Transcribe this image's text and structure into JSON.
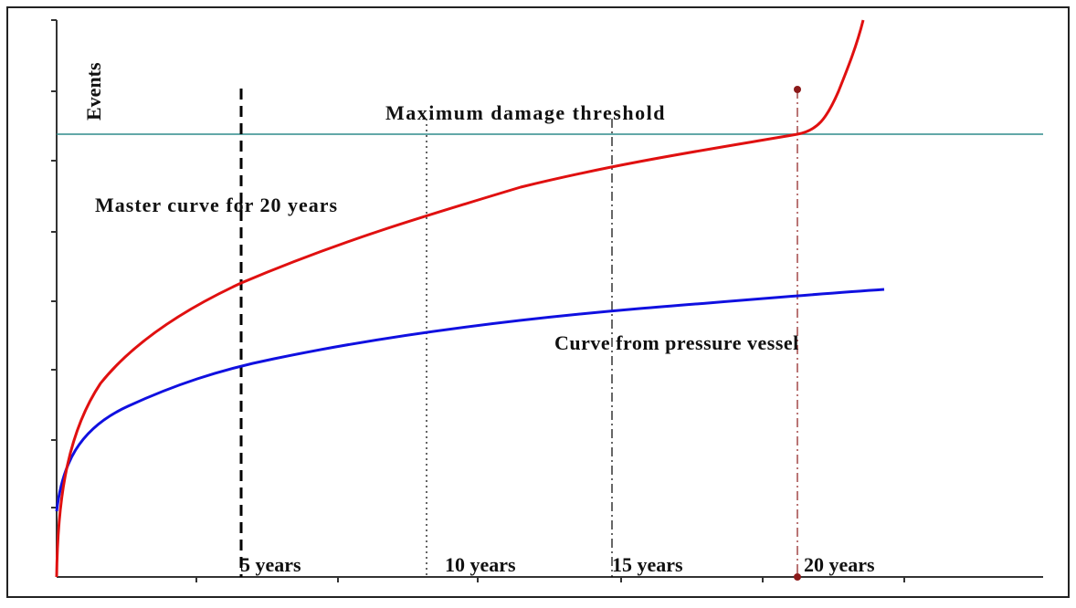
{
  "axis_label": "Events",
  "threshold": {
    "label": "Maximum damage threshold"
  },
  "curves": [
    {
      "label": "Master curve for 20 years"
    },
    {
      "label": "Curve from pressure vessel"
    }
  ],
  "markers": [
    {
      "label": "5 years"
    },
    {
      "label": "10 years"
    },
    {
      "label": "15 years"
    },
    {
      "label": "20 years"
    }
  ]
}
